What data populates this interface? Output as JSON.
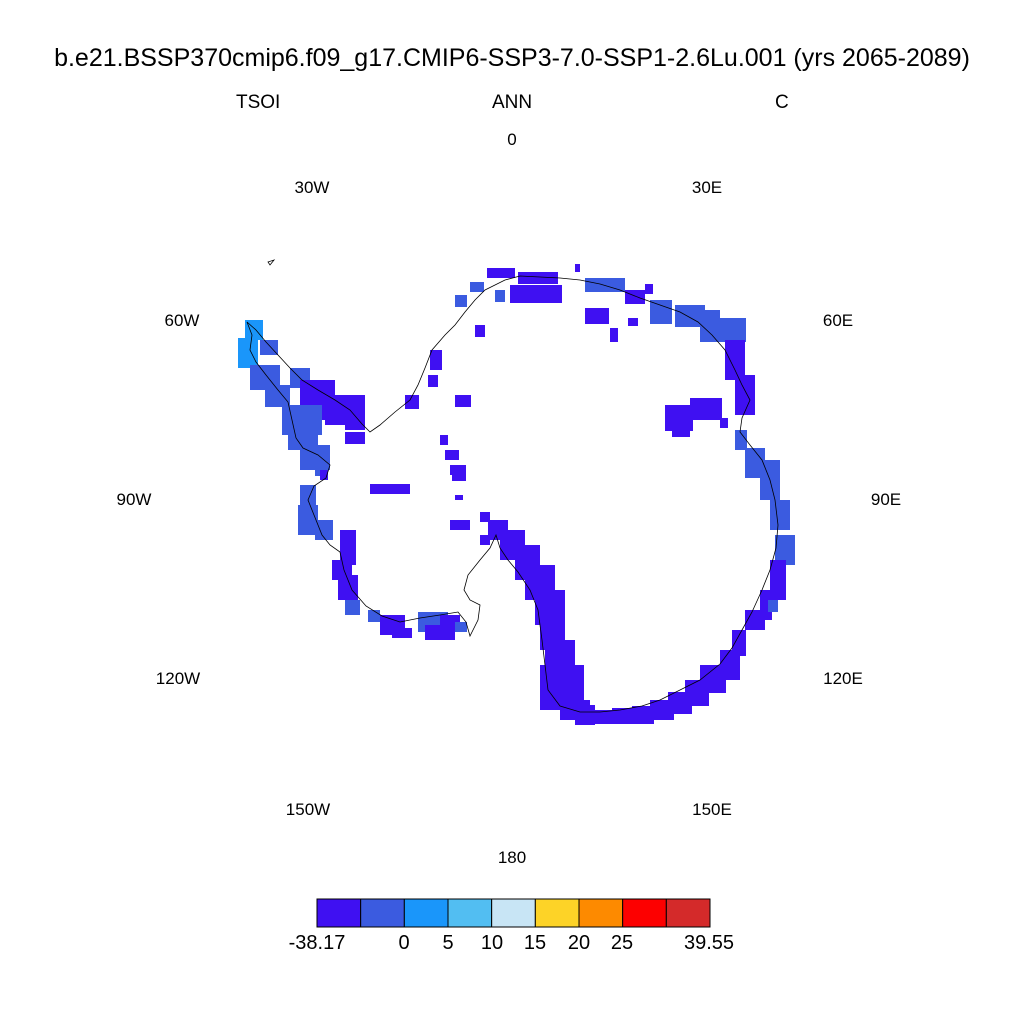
{
  "header": {
    "title": "b.e21.BSSP370cmip6.f09_g17.CMIP6-SSP3-7.0-SSP1-2.6Lu.001 (yrs 2065-2089)",
    "variable": "TSOI",
    "season": "ANN",
    "units": "C"
  },
  "map": {
    "projection": "south-polar-stereographic",
    "longitude_labels": [
      "0",
      "30E",
      "60E",
      "90E",
      "120E",
      "150E",
      "180",
      "150W",
      "120W",
      "90W",
      "60W",
      "30W"
    ],
    "dominant_color": "#3F10F2"
  },
  "colorbar": {
    "colors": [
      "#3F10F2",
      "#3B5BE0",
      "#1A96FA",
      "#52BEF2",
      "#C8E5F5",
      "#FDD327",
      "#FD8A00",
      "#FD0000",
      "#D42A2A"
    ],
    "labels": [
      "-38.17",
      "0",
      "5",
      "10",
      "15",
      "20",
      "25",
      "39.55"
    ],
    "min": "-38.17",
    "max": "39.55"
  }
}
